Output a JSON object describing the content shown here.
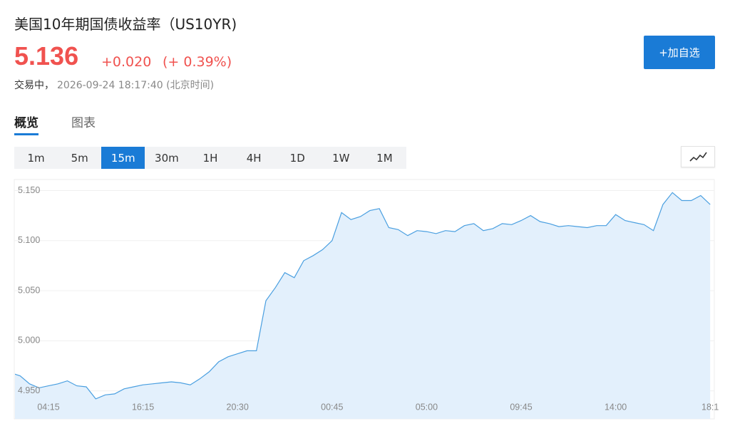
{
  "header": {
    "title": "美国10年期国债收益率（US10YR)",
    "price": "5.136",
    "change": "+0.020",
    "change_percent": "(+ 0.39%)",
    "status": "交易中，",
    "datetime": "2026-09-24 18:17:40 (北京时间)"
  },
  "button": "+加自选",
  "tabs": [
    "概览",
    "图表"
  ],
  "intervals": [
    "1m",
    "5m",
    "15m",
    "30m",
    "1H",
    "4H",
    "1D",
    "1W",
    "1M"
  ],
  "chart_data": {
    "type": "area",
    "color": "#4a9fe0",
    "fill": "#e3f0fc",
    "categories": [
      null,
      null,
      null,
      null,
      "04:15",
      null,
      null,
      null,
      null,
      null,
      null,
      null,
      null,
      null,
      "16:15",
      null,
      null,
      null,
      null,
      null,
      null,
      null,
      null,
      null,
      "20:30",
      null,
      null,
      null,
      null,
      null,
      null,
      null,
      null,
      null,
      "00:45",
      null,
      null,
      null,
      null,
      null,
      null,
      null,
      null,
      null,
      "05:00",
      null,
      null,
      null,
      null,
      null,
      null,
      null,
      null,
      null,
      "09:45",
      null,
      null,
      null,
      null,
      null,
      null,
      null,
      null,
      null,
      "14:00",
      null,
      null,
      null,
      null,
      null,
      null,
      null,
      null,
      null,
      "18:1"
    ],
    "values": [
      4.968,
      4.965,
      4.957,
      4.953,
      4.955,
      4.957,
      4.96,
      4.955,
      4.954,
      4.942,
      4.946,
      4.947,
      4.952,
      4.954,
      4.956,
      4.957,
      4.958,
      4.959,
      4.958,
      4.956,
      4.962,
      4.969,
      4.979,
      4.984,
      4.987,
      4.99,
      4.99,
      5.04,
      5.053,
      5.068,
      5.063,
      5.08,
      5.085,
      5.091,
      5.1,
      5.128,
      5.121,
      5.124,
      5.13,
      5.132,
      5.113,
      5.111,
      5.105,
      5.11,
      5.109,
      5.107,
      5.11,
      5.109,
      5.115,
      5.117,
      5.11,
      5.112,
      5.117,
      5.116,
      5.12,
      5.125,
      5.119,
      5.117,
      5.114,
      5.115,
      5.114,
      5.113,
      5.115,
      5.115,
      5.126,
      5.12,
      5.118,
      5.116,
      5.11,
      5.136,
      5.148,
      5.14,
      5.14,
      5.145,
      5.136
    ],
    "ylim": [
      4.922,
      5.161
    ],
    "yticks": [
      {
        "value": 4.95,
        "label": "4.950"
      },
      {
        "value": 5.0,
        "label": "5.000"
      },
      {
        "value": 5.05,
        "label": "5.050"
      },
      {
        "value": 5.1,
        "label": "5.100"
      },
      {
        "value": 5.15,
        "label": "5.150"
      }
    ],
    "grid": true
  }
}
